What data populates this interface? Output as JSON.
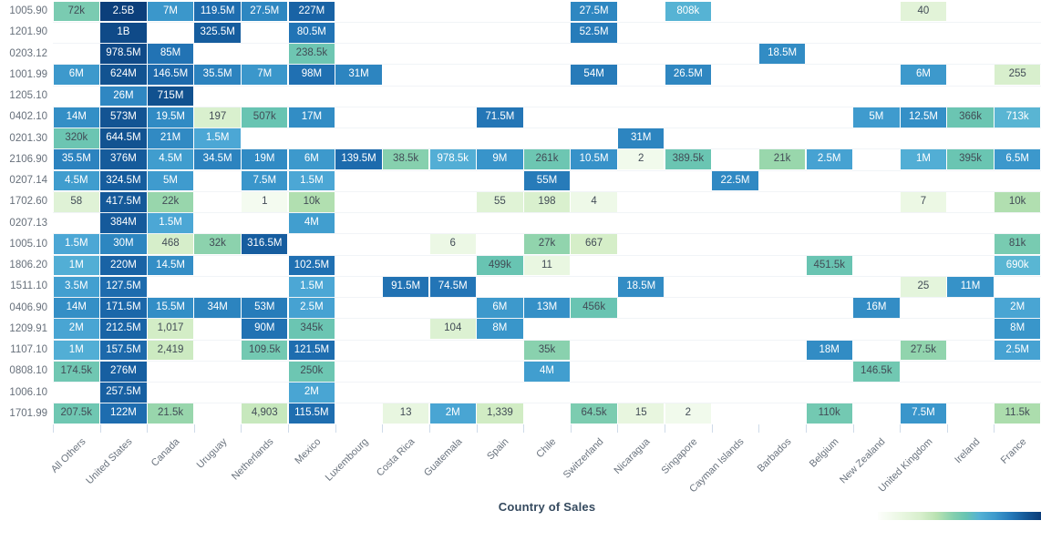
{
  "chart_data": {
    "type": "heatmap",
    "title": "",
    "xlabel": "Country of Sales",
    "ylabel": "",
    "legend": {
      "type": "gradient",
      "position": "bottom-right",
      "low_color": "#f4fbf0",
      "high_color": "#0b3c78"
    },
    "color_scale": {
      "scale": "log10",
      "stops": [
        [
          0,
          "#f4fbf0"
        ],
        [
          1,
          "#eaf7e2"
        ],
        [
          2,
          "#dcf1d2"
        ],
        [
          3,
          "#d3edc6"
        ],
        [
          3.75,
          "#c6e8bc"
        ],
        [
          4.1,
          "#a9dcab"
        ],
        [
          4.6,
          "#85d0ae"
        ],
        [
          5.0,
          "#74c9b2"
        ],
        [
          5.72,
          "#68c4b2"
        ],
        [
          5.82,
          "#5ab7d3"
        ],
        [
          6.1,
          "#4ea9d6"
        ],
        [
          6.6,
          "#419ecf"
        ],
        [
          7.0,
          "#3793c9"
        ],
        [
          7.5,
          "#2d85c0"
        ],
        [
          8.0,
          "#2070b2"
        ],
        [
          8.45,
          "#175fa1"
        ],
        [
          8.8,
          "#125391"
        ],
        [
          9.0,
          "#0f4a88"
        ],
        [
          9.5,
          "#0b3c78"
        ]
      ],
      "white_text_threshold": 600000,
      "dark_text_color": "#424c56"
    },
    "x_categories": [
      "All Others",
      "United States",
      "Canada",
      "Uruguay",
      "Netherlands",
      "Mexico",
      "Luxembourg",
      "Costa Rica",
      "Guatemala",
      "Spain",
      "Chile",
      "Switzerland",
      "Nicaragua",
      "Singapore",
      "Cayman Islands",
      "Barbados",
      "Belgium",
      "New Zealand",
      "United Kingdom",
      "Ireland",
      "France"
    ],
    "y_categories": [
      "1005.90",
      "1201.90",
      "0203.12",
      "1001.99",
      "1205.10",
      "0402.10",
      "0201.30",
      "2106.90",
      "0207.14",
      "1702.60",
      "0207.13",
      "1005.10",
      "1806.20",
      "1511.10",
      "0406.90",
      "1209.91",
      "1107.10",
      "0808.10",
      "1006.10",
      "1701.99"
    ],
    "rows": [
      {
        "code": "1005.90",
        "values": [
          "72k",
          "2.5B",
          "7M",
          "119.5M",
          "27.5M",
          "227M",
          null,
          null,
          null,
          null,
          null,
          "27.5M",
          null,
          "808k",
          null,
          null,
          null,
          null,
          "40",
          null,
          null
        ]
      },
      {
        "code": "1201.90",
        "values": [
          null,
          "1B",
          null,
          "325.5M",
          null,
          "80.5M",
          null,
          null,
          null,
          null,
          null,
          "52.5M",
          null,
          null,
          null,
          null,
          null,
          null,
          null,
          null,
          null
        ]
      },
      {
        "code": "0203.12",
        "values": [
          null,
          "978.5M",
          "85M",
          null,
          null,
          "238.5k",
          null,
          null,
          null,
          null,
          null,
          null,
          null,
          null,
          null,
          "18.5M",
          null,
          null,
          null,
          null,
          null
        ]
      },
      {
        "code": "1001.99",
        "values": [
          "6M",
          "624M",
          "146.5M",
          "35.5M",
          "7M",
          "98M",
          "31M",
          null,
          null,
          null,
          null,
          "54M",
          null,
          "26.5M",
          null,
          null,
          null,
          null,
          "6M",
          null,
          "255"
        ]
      },
      {
        "code": "1205.10",
        "values": [
          null,
          "26M",
          "715M",
          null,
          null,
          null,
          null,
          null,
          null,
          null,
          null,
          null,
          null,
          null,
          null,
          null,
          null,
          null,
          null,
          null,
          null
        ]
      },
      {
        "code": "0402.10",
        "values": [
          "14M",
          "573M",
          "19.5M",
          "197",
          "507k",
          "17M",
          null,
          null,
          null,
          "71.5M",
          null,
          null,
          null,
          null,
          null,
          null,
          null,
          "5M",
          "12.5M",
          "366k",
          "713k"
        ]
      },
      {
        "code": "0201.30",
        "values": [
          "320k",
          "644.5M",
          "21M",
          "1.5M",
          null,
          null,
          null,
          null,
          null,
          null,
          null,
          null,
          "31M",
          null,
          null,
          null,
          null,
          null,
          null,
          null,
          null
        ]
      },
      {
        "code": "2106.90",
        "values": [
          "35.5M",
          "376M",
          "4.5M",
          "34.5M",
          "19M",
          "6M",
          "139.5M",
          "38.5k",
          "978.5k",
          "9M",
          "261k",
          "10.5M",
          "2",
          "389.5k",
          null,
          "21k",
          "2.5M",
          null,
          "1M",
          "395k",
          "6.5M"
        ]
      },
      {
        "code": "0207.14",
        "values": [
          "4.5M",
          "324.5M",
          "5M",
          null,
          "7.5M",
          "1.5M",
          null,
          null,
          null,
          null,
          "55M",
          null,
          null,
          null,
          "22.5M",
          null,
          null,
          null,
          null,
          null,
          null
        ]
      },
      {
        "code": "1702.60",
        "values": [
          "58",
          "417.5M",
          "22k",
          null,
          "1",
          "10k",
          null,
          null,
          null,
          "55",
          "198",
          "4",
          null,
          null,
          null,
          null,
          null,
          null,
          "7",
          null,
          "10k"
        ]
      },
      {
        "code": "0207.13",
        "values": [
          null,
          "384M",
          "1.5M",
          null,
          null,
          "4M",
          null,
          null,
          null,
          null,
          null,
          null,
          null,
          null,
          null,
          null,
          null,
          null,
          null,
          null,
          null
        ]
      },
      {
        "code": "1005.10",
        "values": [
          "1.5M",
          "30M",
          "468",
          "32k",
          "316.5M",
          null,
          null,
          null,
          "6",
          null,
          "27k",
          "667",
          null,
          null,
          null,
          null,
          null,
          null,
          null,
          null,
          "81k"
        ]
      },
      {
        "code": "1806.20",
        "values": [
          "1M",
          "220M",
          "14.5M",
          null,
          null,
          "102.5M",
          null,
          null,
          null,
          "499k",
          "11",
          null,
          null,
          null,
          null,
          null,
          "451.5k",
          null,
          null,
          null,
          "690k"
        ]
      },
      {
        "code": "1511.10",
        "values": [
          "3.5M",
          "127.5M",
          null,
          null,
          null,
          "1.5M",
          null,
          "91.5M",
          "74.5M",
          null,
          null,
          null,
          "18.5M",
          null,
          null,
          null,
          null,
          null,
          "25",
          "11M",
          null
        ]
      },
      {
        "code": "0406.90",
        "values": [
          "14M",
          "171.5M",
          "15.5M",
          "34M",
          "53M",
          "2.5M",
          null,
          null,
          null,
          "6M",
          "13M",
          "456k",
          null,
          null,
          null,
          null,
          null,
          "16M",
          null,
          null,
          "2M"
        ]
      },
      {
        "code": "1209.91",
        "values": [
          "2M",
          "212.5M",
          "1,017",
          null,
          "90M",
          "345k",
          null,
          null,
          "104",
          "8M",
          null,
          null,
          null,
          null,
          null,
          null,
          null,
          null,
          null,
          null,
          "8M"
        ]
      },
      {
        "code": "1107.10",
        "values": [
          "1M",
          "157.5M",
          "2,419",
          null,
          "109.5k",
          "121.5M",
          null,
          null,
          null,
          null,
          "35k",
          null,
          null,
          null,
          null,
          null,
          "18M",
          null,
          "27.5k",
          null,
          "2.5M"
        ]
      },
      {
        "code": "0808.10",
        "values": [
          "174.5k",
          "276M",
          null,
          null,
          null,
          "250k",
          null,
          null,
          null,
          null,
          "4M",
          null,
          null,
          null,
          null,
          null,
          null,
          "146.5k",
          null,
          null,
          null
        ]
      },
      {
        "code": "1006.10",
        "values": [
          null,
          "257.5M",
          null,
          null,
          null,
          "2M",
          null,
          null,
          null,
          null,
          null,
          null,
          null,
          null,
          null,
          null,
          null,
          null,
          null,
          null,
          null
        ]
      },
      {
        "code": "1701.99",
        "values": [
          "207.5k",
          "122M",
          "21.5k",
          null,
          "4,903",
          "115.5M",
          null,
          "13",
          "2M",
          "1,339",
          null,
          "64.5k",
          "15",
          "2",
          null,
          null,
          "110k",
          null,
          "7.5M",
          null,
          "11.5k"
        ]
      }
    ]
  }
}
